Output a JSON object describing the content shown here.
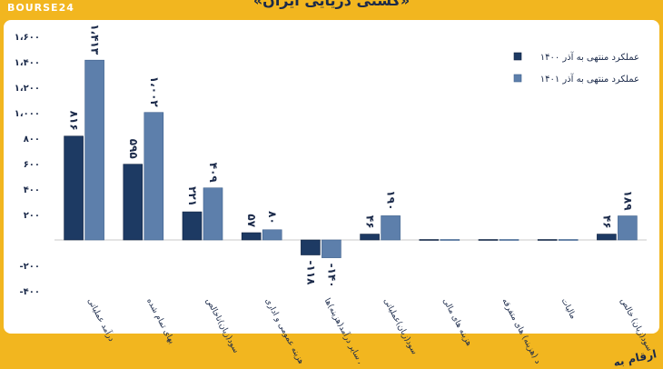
{
  "brand": "BOURSE24",
  "title": "«کشتی دریایی ایران»",
  "footer_note": "ارقام به",
  "colors": {
    "series1": "#1d3a63",
    "series2": "#5d7fab",
    "background": "#f2b61f",
    "axis_text": "#1b2a4a"
  },
  "chart_data": {
    "type": "bar",
    "categories": [
      "درآمد عملیاتی",
      "بهای تمام شده",
      "سود(زیان)ناخالص",
      "هزینه عمومی و اداری",
      "خالص سایر درآمد(هزینه)ها",
      "سود(زیان)عملیاتی",
      "هزینه های مالی",
      "درآمد (هزینه) های متفرقه",
      "مالیات",
      "سود(زیان) خالص"
    ],
    "series": [
      {
        "name": "عملکرد منتهی به آذر ۱۴۰۰",
        "values": [
          816,
          595,
          221,
          57,
          -118,
          46,
          0,
          0,
          0,
          46
        ],
        "labels": [
          "۸۱۶",
          "۵۹۵",
          "۲۲۱",
          "۵۷",
          "-۱۱۸",
          "۴۶",
          "",
          "",
          "",
          "۴۶"
        ]
      },
      {
        "name": "عملکرد منتهی به آذر ۱۴۰۱",
        "values": [
          1413,
          1002,
          409,
          80,
          -140,
          190,
          0,
          0,
          0,
          189
        ],
        "labels": [
          "۱،۴۱۳",
          "۱،۰۰۲",
          "۴۰۹",
          "۸۰",
          "-۱۴۰",
          "۱۹۰",
          "",
          "",
          "",
          "۱۸۹"
        ]
      }
    ],
    "yticks": [
      1600,
      1400,
      1200,
      1000,
      800,
      600,
      400,
      200,
      -200,
      -400
    ],
    "ytick_labels": [
      "۱،۶۰۰",
      "۱،۴۰۰",
      "۱،۲۰۰",
      "۱،۰۰۰",
      "۸۰۰",
      "۶۰۰",
      "۴۰۰",
      "۲۰۰",
      "-۲۰۰",
      "-۴۰۰"
    ],
    "ylim": [
      -400,
      1600
    ],
    "legend_position": "top-right",
    "grid": false
  }
}
